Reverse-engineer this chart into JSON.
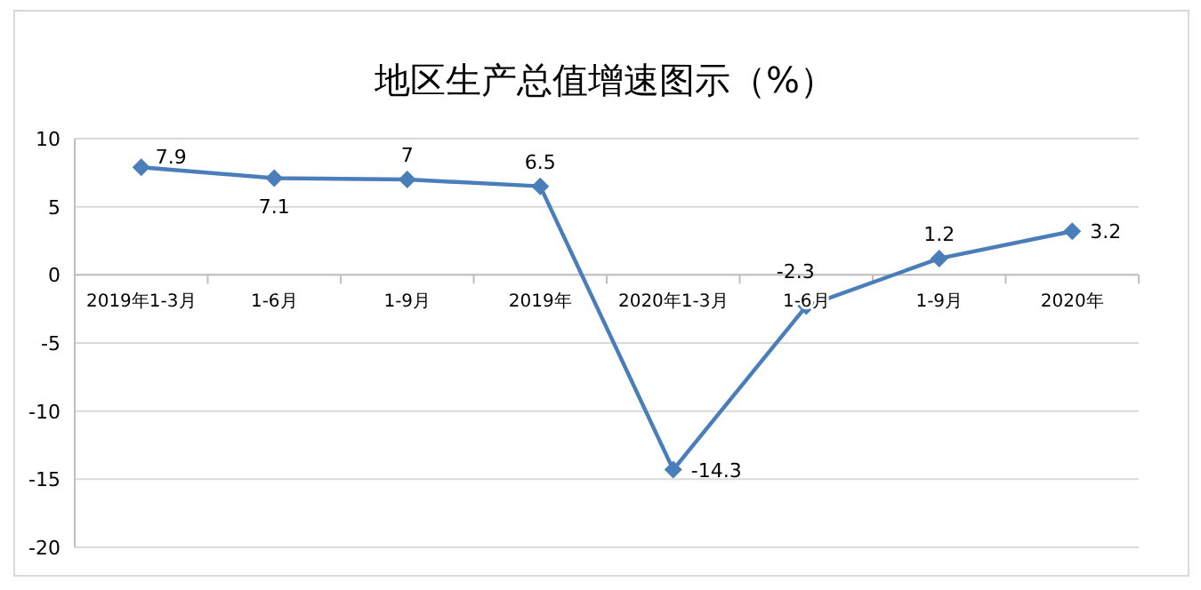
{
  "chart_data": {
    "type": "line",
    "title": "地区生产总值增速图示（%）",
    "categories": [
      "2019年1-3月",
      "1-6月",
      "1-9月",
      "2019年",
      "2020年1-3月",
      "1-6月",
      "1-9月",
      "2020年"
    ],
    "values": [
      7.9,
      7.1,
      7,
      6.5,
      -14.3,
      -2.3,
      1.2,
      3.2
    ],
    "color": "#4a7ebb",
    "ylim": [
      -20,
      10
    ],
    "yticks": [
      -20,
      -15,
      -10,
      -5,
      0,
      5,
      10
    ],
    "grid": "y",
    "marker": "diamond",
    "line_style": "solid",
    "data_labels": true
  }
}
